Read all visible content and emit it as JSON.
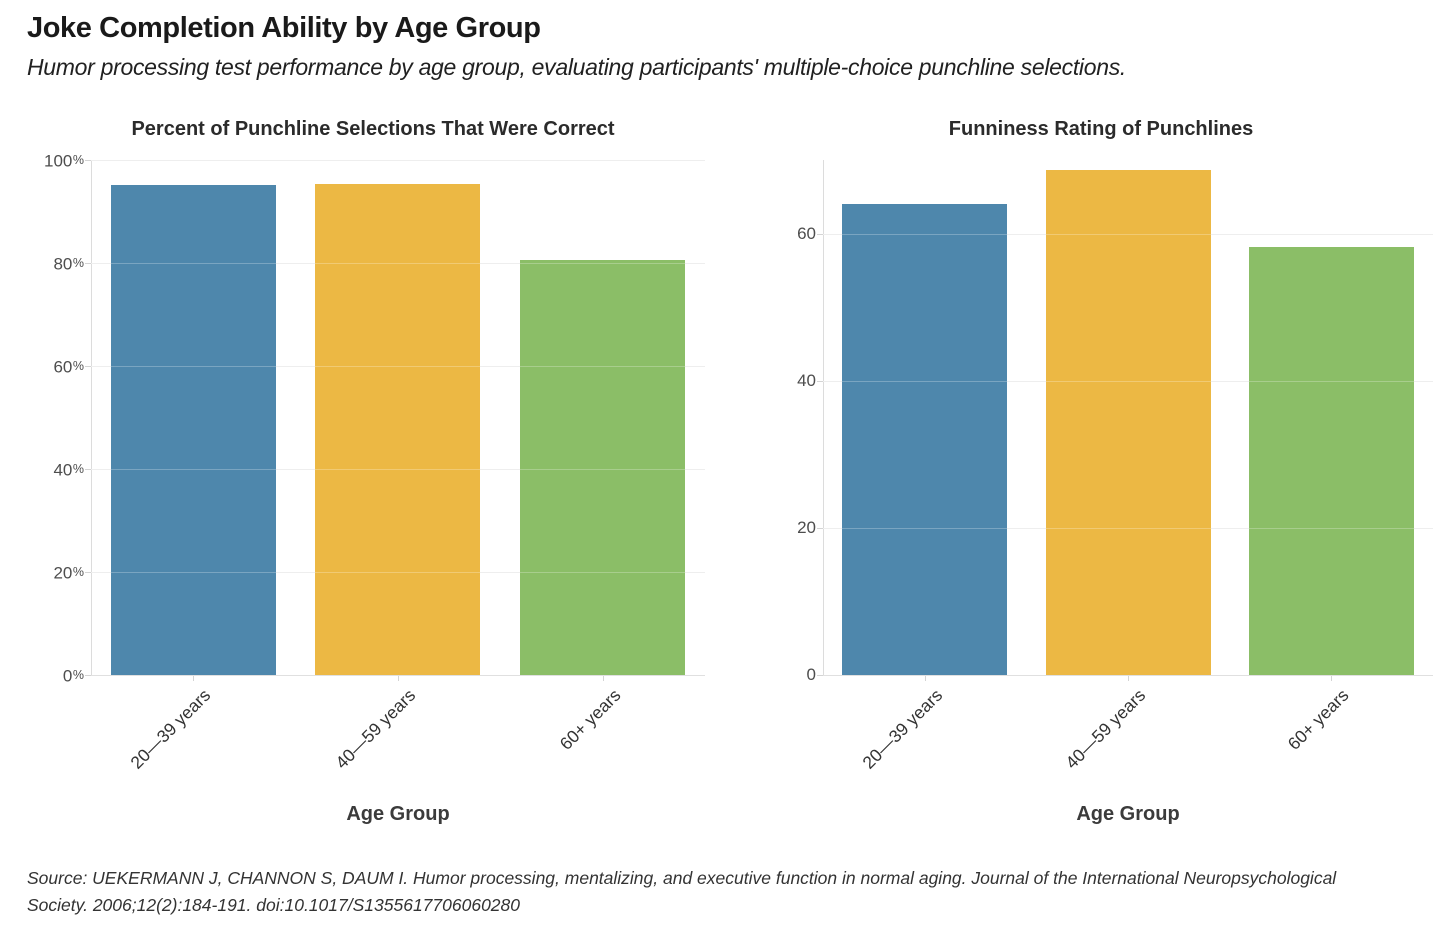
{
  "page": {
    "title": "Joke Completion Ability by Age Group",
    "subtitle": "Humor processing test performance by age group, evaluating participants' multiple-choice punchline selections.",
    "source": "Source: UEKERMANN J, CHANNON S, DAUM I. Humor processing, mentalizing, and executive function in normal aging. Journal of the International Neuropsychological Society. 2006;12(2):184-191. doi:10.1017/S1355617706060280"
  },
  "colors": {
    "bar_blue": "#4e87ac",
    "bar_yellow": "#ecb844",
    "bar_green": "#8bbe67",
    "gridline": "#e9e9e9",
    "axis_line": "#dcdcdc",
    "tick_text": "#4d4d4d"
  },
  "chart_data": [
    {
      "type": "bar",
      "title": "Percent of Punchline Selections That Were Correct",
      "categories": [
        "20—39 years",
        "40—59 years",
        "60+ years"
      ],
      "values": [
        95.1,
        95.3,
        80.6
      ],
      "xlabel": "Age Group",
      "ylabel": "",
      "ylim": [
        0,
        100
      ],
      "yticks": [
        0,
        20,
        40,
        60,
        80,
        100
      ],
      "ytick_suffix": "%",
      "bar_colors": [
        "#4e87ac",
        "#ecb844",
        "#8bbe67"
      ],
      "grid": true,
      "legend": "none"
    },
    {
      "type": "bar",
      "title": "Funniness Rating of Punchlines",
      "categories": [
        "20—39 years",
        "40—59 years",
        "60+ years"
      ],
      "values": [
        64,
        68.6,
        58.2
      ],
      "xlabel": "Age Group",
      "ylabel": "",
      "ylim": [
        0,
        70
      ],
      "yticks": [
        0,
        20,
        40,
        60
      ],
      "ytick_suffix": "",
      "bar_colors": [
        "#4e87ac",
        "#ecb844",
        "#8bbe67"
      ],
      "grid": true,
      "legend": "none"
    }
  ]
}
